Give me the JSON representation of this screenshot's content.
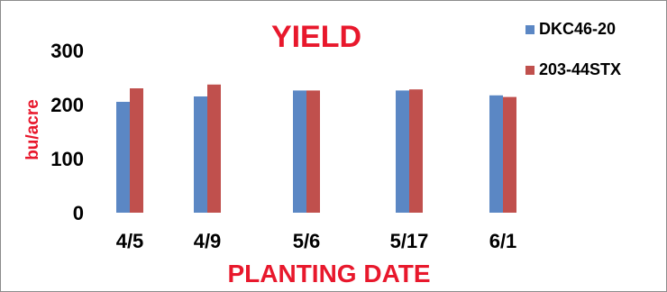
{
  "chart_data": {
    "type": "bar",
    "title": "YIELD",
    "xlabel": "PLANTING DATE",
    "ylabel": "bu/acre",
    "categories": [
      "4/5",
      "4/9",
      "5/6",
      "5/17",
      "6/1"
    ],
    "series": [
      {
        "name": "DKC46-20",
        "values": [
          205,
          215,
          226,
          226,
          217
        ]
      },
      {
        "name": "203-44STX",
        "values": [
          230,
          237,
          226,
          228,
          214
        ]
      }
    ],
    "ylim": [
      0,
      300
    ],
    "yticks": [
      "0",
      "100",
      "200",
      "300"
    ],
    "grid": false,
    "legend_position": "top-right",
    "colors": {
      "series": [
        "#5b87c4",
        "#c0504d"
      ],
      "title": "#e8182c",
      "axis_label": "#e8182c",
      "tick_label": "#000000",
      "legend_text": "#000000"
    }
  }
}
